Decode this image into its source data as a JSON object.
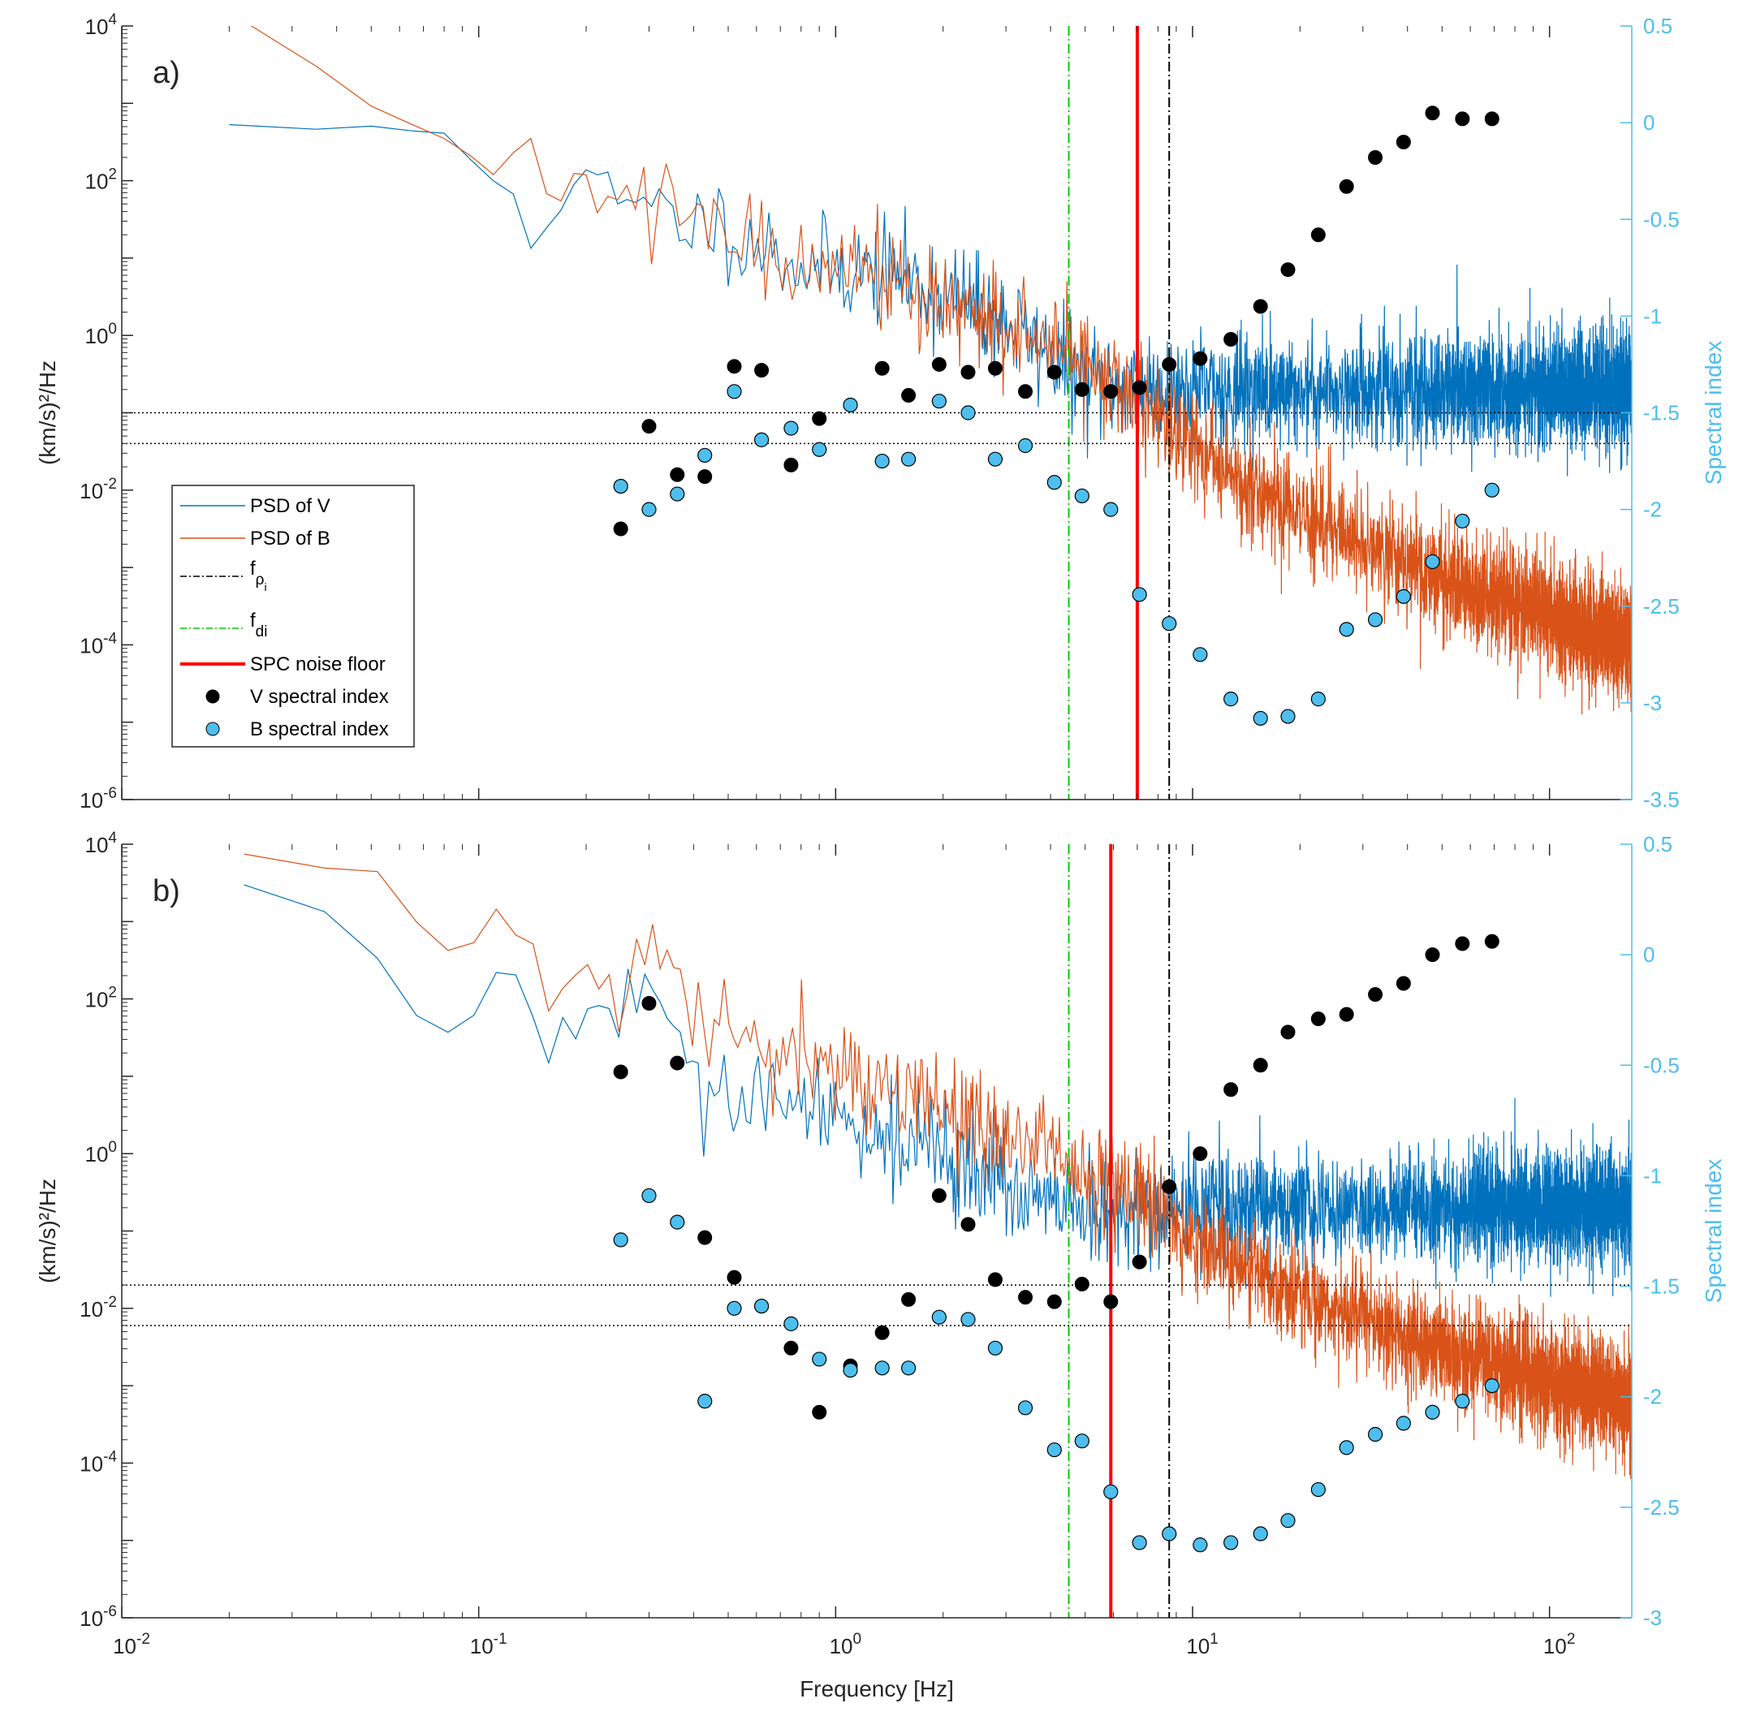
{
  "chart_data": [
    {
      "panel_label": "a)",
      "type": "line",
      "xscale": "log",
      "xlim": [
        0.01,
        170
      ],
      "ylabel": "(km/s)²/Hz",
      "yscale": "log",
      "ylim": [
        1e-06,
        10000.0
      ],
      "y2label": "Spectral index",
      "y2lim": [
        -3.5,
        0.5
      ],
      "y2ticks": [
        -3.5,
        -3,
        -2.5,
        -2,
        -1.5,
        -1,
        -0.5,
        0,
        0.5
      ],
      "series": [
        {
          "name": "PSD of V",
          "color": "#0072bd",
          "anchors": [
            [
              0.02,
              600
            ],
            [
              0.04,
              200
            ],
            [
              0.06,
              700
            ],
            [
              0.1,
              170
            ],
            [
              0.12,
              160
            ],
            [
              0.14,
              30
            ],
            [
              0.2,
              70
            ],
            [
              0.3,
              40
            ],
            [
              0.5,
              25
            ],
            [
              0.8,
              8
            ],
            [
              1.5,
              6
            ],
            [
              3,
              1.5
            ],
            [
              5,
              0.25
            ],
            [
              10,
              0.2
            ],
            [
              30,
              0.2
            ],
            [
              100,
              0.2
            ],
            [
              170,
              0.2
            ]
          ],
          "noise": 0.35
        },
        {
          "name": "PSD of B",
          "color": "#d95319",
          "anchors": [
            [
              0.02,
              8000
            ],
            [
              0.04,
              3000
            ],
            [
              0.06,
              900
            ],
            [
              0.08,
              300
            ],
            [
              0.1,
              220
            ],
            [
              0.12,
              180
            ],
            [
              0.2,
              70
            ],
            [
              0.3,
              40
            ],
            [
              0.5,
              20
            ],
            [
              1,
              8
            ],
            [
              2,
              3
            ],
            [
              3,
              1.2
            ],
            [
              5,
              0.4
            ],
            [
              7,
              0.15
            ],
            [
              9,
              0.05
            ],
            [
              15,
              0.01
            ],
            [
              30,
              0.002
            ],
            [
              60,
              0.0005
            ],
            [
              100,
              0.00025
            ],
            [
              170,
              0.0001
            ]
          ],
          "noise": 0.35
        }
      ],
      "reference_lines": {
        "f_rho_i": 8.6,
        "f_di": 4.5,
        "SPC_noise_floor": 7.0
      },
      "noise_levels": [
        0.1,
        0.04
      ],
      "V_spectral_index": [
        [
          0.25,
          -2.1
        ],
        [
          0.3,
          -1.57
        ],
        [
          0.36,
          -1.82
        ],
        [
          0.43,
          -1.83
        ],
        [
          0.52,
          -1.26
        ],
        [
          0.62,
          -1.28
        ],
        [
          0.75,
          -1.77
        ],
        [
          0.9,
          -1.53
        ],
        [
          1.35,
          -1.27
        ],
        [
          1.6,
          -1.41
        ],
        [
          1.95,
          -1.25
        ],
        [
          2.35,
          -1.29
        ],
        [
          2.8,
          -1.27
        ],
        [
          3.4,
          -1.39
        ],
        [
          4.1,
          -1.29
        ],
        [
          4.9,
          -1.38
        ],
        [
          5.9,
          -1.39
        ],
        [
          7.1,
          -1.37
        ],
        [
          8.6,
          -1.25
        ],
        [
          10.5,
          -1.22
        ],
        [
          12.8,
          -1.12
        ],
        [
          15.5,
          -0.95
        ],
        [
          18.5,
          -0.76
        ],
        [
          22.5,
          -0.58
        ],
        [
          27,
          -0.33
        ],
        [
          32.5,
          -0.18
        ],
        [
          39,
          -0.1
        ],
        [
          47,
          0.05
        ],
        [
          57,
          0.02
        ],
        [
          69,
          0.02
        ]
      ],
      "B_spectral_index": [
        [
          0.25,
          -1.88
        ],
        [
          0.3,
          -2.0
        ],
        [
          0.36,
          -1.92
        ],
        [
          0.43,
          -1.72
        ],
        [
          0.52,
          -1.39
        ],
        [
          0.62,
          -1.64
        ],
        [
          0.75,
          -1.58
        ],
        [
          0.9,
          -1.69
        ],
        [
          1.1,
          -1.46
        ],
        [
          1.35,
          -1.75
        ],
        [
          1.6,
          -1.74
        ],
        [
          1.95,
          -1.44
        ],
        [
          2.35,
          -1.5
        ],
        [
          2.8,
          -1.74
        ],
        [
          3.4,
          -1.67
        ],
        [
          4.1,
          -1.86
        ],
        [
          4.9,
          -1.93
        ],
        [
          5.9,
          -2.0
        ],
        [
          7.1,
          -2.44
        ],
        [
          8.6,
          -2.59
        ],
        [
          10.5,
          -2.75
        ],
        [
          12.8,
          -2.98
        ],
        [
          15.5,
          -3.08
        ],
        [
          18.5,
          -3.07
        ],
        [
          22.5,
          -2.98
        ],
        [
          27,
          -2.62
        ],
        [
          32.5,
          -2.57
        ],
        [
          39,
          -2.45
        ],
        [
          47,
          -2.27
        ],
        [
          57,
          -2.06
        ],
        [
          69,
          -1.9
        ]
      ]
    },
    {
      "panel_label": "b)",
      "type": "line",
      "xscale": "log",
      "xlim": [
        0.01,
        170
      ],
      "xlabel": "Frequency [Hz]",
      "ylabel": "(km/s)²/Hz",
      "yscale": "log",
      "ylim": [
        1e-06,
        10000.0
      ],
      "y2label": "Spectral index",
      "y2lim": [
        -3,
        0.5
      ],
      "y2ticks": [
        -3,
        -2.5,
        -2,
        -1.5,
        -1,
        -0.5,
        0,
        0.5
      ],
      "series": [
        {
          "name": "PSD of V",
          "color": "#0072bd",
          "anchors": [
            [
              0.022,
              1600
            ],
            [
              0.045,
              1300
            ],
            [
              0.065,
              60
            ],
            [
              0.09,
              30
            ],
            [
              0.11,
              300
            ],
            [
              0.15,
              40
            ],
            [
              0.2,
              35
            ],
            [
              0.28,
              120
            ],
            [
              0.35,
              30
            ],
            [
              0.43,
              5
            ],
            [
              0.6,
              5
            ],
            [
              1,
              3
            ],
            [
              2,
              1
            ],
            [
              4,
              0.2
            ],
            [
              6,
              0.15
            ],
            [
              10,
              0.2
            ],
            [
              30,
              0.2
            ],
            [
              100,
              0.2
            ],
            [
              170,
              0.2
            ]
          ],
          "noise": 0.35
        },
        {
          "name": "PSD of B",
          "color": "#d95319",
          "anchors": [
            [
              0.022,
              9000
            ],
            [
              0.045,
              8000
            ],
            [
              0.065,
              700
            ],
            [
              0.09,
              250
            ],
            [
              0.11,
              1300
            ],
            [
              0.15,
              300
            ],
            [
              0.2,
              200
            ],
            [
              0.25,
              80
            ],
            [
              0.3,
              350
            ],
            [
              0.35,
              80
            ],
            [
              0.45,
              50
            ],
            [
              0.6,
              25
            ],
            [
              1,
              12
            ],
            [
              2,
              4
            ],
            [
              3,
              1.5
            ],
            [
              5,
              0.5
            ],
            [
              7,
              0.25
            ],
            [
              10,
              0.08
            ],
            [
              20,
              0.015
            ],
            [
              40,
              0.004
            ],
            [
              80,
              0.0015
            ],
            [
              170,
              0.0006
            ]
          ],
          "noise": 0.35
        }
      ],
      "reference_lines": {
        "f_rho_i": 8.6,
        "f_di": 4.5,
        "SPC_noise_floor": 5.9
      },
      "noise_levels": [
        0.02,
        0.006
      ],
      "V_spectral_index": [
        [
          0.25,
          -0.53
        ],
        [
          0.3,
          -0.22
        ],
        [
          0.36,
          -0.49
        ],
        [
          0.43,
          -1.28
        ],
        [
          0.52,
          -1.46
        ],
        [
          0.62,
          -1.59
        ],
        [
          0.75,
          -1.78
        ],
        [
          0.9,
          -2.07
        ],
        [
          1.1,
          -1.86
        ],
        [
          1.35,
          -1.71
        ],
        [
          1.6,
          -1.56
        ],
        [
          1.95,
          -1.09
        ],
        [
          2.35,
          -1.22
        ],
        [
          2.8,
          -1.47
        ],
        [
          3.4,
          -1.55
        ],
        [
          4.1,
          -1.57
        ],
        [
          4.9,
          -1.49
        ],
        [
          5.9,
          -1.57
        ],
        [
          7.1,
          -1.39
        ],
        [
          8.6,
          -1.05
        ],
        [
          10.5,
          -0.9
        ],
        [
          12.8,
          -0.61
        ],
        [
          15.5,
          -0.5
        ],
        [
          18.5,
          -0.35
        ],
        [
          22.5,
          -0.29
        ],
        [
          27,
          -0.27
        ],
        [
          32.5,
          -0.18
        ],
        [
          39,
          -0.13
        ],
        [
          47,
          0
        ],
        [
          57,
          0.05
        ],
        [
          69,
          0.06
        ]
      ],
      "B_spectral_index": [
        [
          0.25,
          -1.29
        ],
        [
          0.3,
          -1.09
        ],
        [
          0.36,
          -1.21
        ],
        [
          0.43,
          -2.02
        ],
        [
          0.52,
          -1.6
        ],
        [
          0.62,
          -1.59
        ],
        [
          0.75,
          -1.67
        ],
        [
          0.9,
          -1.83
        ],
        [
          1.1,
          -1.88
        ],
        [
          1.35,
          -1.87
        ],
        [
          1.6,
          -1.87
        ],
        [
          1.95,
          -1.64
        ],
        [
          2.35,
          -1.65
        ],
        [
          2.8,
          -1.78
        ],
        [
          3.4,
          -2.05
        ],
        [
          4.1,
          -2.24
        ],
        [
          4.9,
          -2.2
        ],
        [
          5.9,
          -2.43
        ],
        [
          7.1,
          -2.66
        ],
        [
          8.6,
          -2.62
        ],
        [
          10.5,
          -2.67
        ],
        [
          12.8,
          -2.66
        ],
        [
          15.5,
          -2.62
        ],
        [
          18.5,
          -2.56
        ],
        [
          22.5,
          -2.42
        ],
        [
          27,
          -2.23
        ],
        [
          32.5,
          -2.17
        ],
        [
          39,
          -2.12
        ],
        [
          47,
          -2.07
        ],
        [
          57,
          -2.02
        ],
        [
          69,
          -1.95
        ]
      ]
    }
  ],
  "legend": {
    "psd_v": "PSD of V",
    "psd_b": "PSD of B",
    "f_rho_main": "f",
    "f_rho_sub": "ρ",
    "f_rho_subsub": "i",
    "f_di_main": "f",
    "f_di_sub": "di",
    "spc": "SPC noise floor",
    "v_index": "V spectral index",
    "b_index": "B spectral index"
  },
  "axis_labels": {
    "x_title": "Frequency [Hz]",
    "y_title": "(km/s)²/Hz",
    "y2_title": "Spectral index"
  },
  "colors": {
    "psd_v": "#0072bd",
    "psd_b": "#d95319",
    "spc": "#ff0000",
    "f_di": "#00cc00",
    "f_rho": "#000000",
    "v_marker": "#000000",
    "b_marker": "#4dbeee",
    "right_axis": "#4dbeee"
  }
}
